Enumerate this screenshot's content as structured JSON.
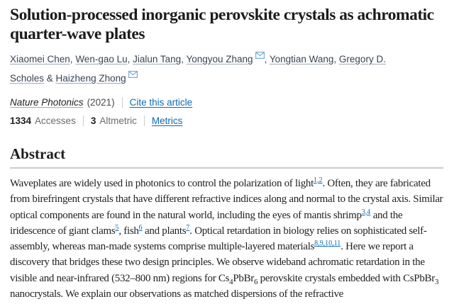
{
  "colors": {
    "link_blue": "#0c6ab2",
    "author_link": "#3a4454",
    "envelope_icon": "#7bacd7",
    "body_text": "#222222",
    "muted_text": "#6b6b6b",
    "divider": "#c9ced3"
  },
  "icons": {
    "email": "envelope"
  },
  "article": {
    "title": "Solution-processed inorganic perovskite crystals as achromatic quarter-wave plates",
    "authors": [
      {
        "name": "Xiaomei Chen",
        "has_email_icon": false,
        "separator": ", "
      },
      {
        "name": "Wen-gao Lu",
        "has_email_icon": false,
        "separator": ", "
      },
      {
        "name": "Jialun Tang",
        "has_email_icon": false,
        "separator": ", "
      },
      {
        "name": "Yongyou Zhang",
        "has_email_icon": true,
        "separator": ", "
      },
      {
        "name": "Yongtian Wang",
        "has_email_icon": false,
        "separator": ", "
      },
      {
        "name": "Gregory D. Scholes",
        "has_email_icon": false,
        "separator": " & "
      },
      {
        "name": "Haizheng Zhong",
        "has_email_icon": true,
        "separator": ""
      }
    ],
    "journal": {
      "name": "Nature Photonics",
      "year": "(2021)",
      "cite_link": "Cite this article"
    },
    "metrics": {
      "accesses_value": "1334",
      "accesses_label": "Accesses",
      "altmetric_value": "3",
      "altmetric_label": "Altmetric",
      "metrics_link": "Metrics"
    }
  },
  "abstract": {
    "heading": "Abstract",
    "segments": [
      {
        "type": "text",
        "value": "Waveplates are widely used in photonics to control the polarization of light"
      },
      {
        "type": "ref",
        "value": "1,2"
      },
      {
        "type": "text",
        "value": ". Often, they are fabricated from birefringent crystals that have different refractive indices along and normal to the crystal axis. Similar optical components are found in the natural world, including the eyes of mantis shrimp"
      },
      {
        "type": "ref",
        "value": "3,4"
      },
      {
        "type": "text",
        "value": " and the iridescence of giant clams"
      },
      {
        "type": "ref",
        "value": "5"
      },
      {
        "type": "text",
        "value": ", fish"
      },
      {
        "type": "ref",
        "value": "6"
      },
      {
        "type": "text",
        "value": " and plants"
      },
      {
        "type": "ref",
        "value": "7"
      },
      {
        "type": "text",
        "value": ". Optical retardation in biology relies on sophisticated self-assembly, whereas man-made systems comprise multiple-layered materials"
      },
      {
        "type": "ref",
        "value": "8,9,10,11"
      },
      {
        "type": "text",
        "value": ". Here we report a discovery that bridges these two design principles. We observe wideband achromatic retardation in the visible and near-infrared (532–800 nm) regions for Cs"
      },
      {
        "type": "sub",
        "value": "4"
      },
      {
        "type": "text",
        "value": "PbBr"
      },
      {
        "type": "sub",
        "value": "6"
      },
      {
        "type": "text",
        "value": " perovskite crystals embedded with CsPbBr"
      },
      {
        "type": "sub",
        "value": "3"
      },
      {
        "type": "text",
        "value": " nanocrystals. We explain our observations as matched dispersions of the refractive"
      }
    ]
  }
}
